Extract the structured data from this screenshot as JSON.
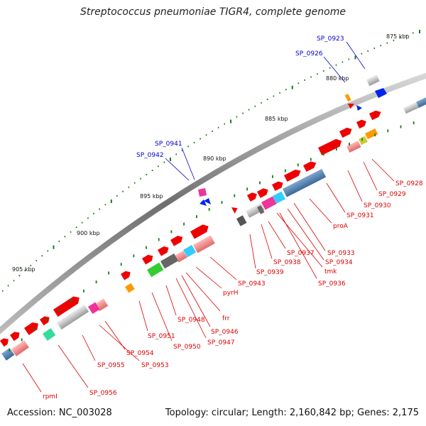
{
  "title": "Streptococcus pneumoniae TIGR4, complete genome",
  "footer": {
    "accession": "Accession: NC_003028",
    "topology": "Topology: circular; Length: 2,160,842 bp; Genes: 2,175"
  },
  "scale_labels": [
    "875 kbp",
    "880 kbp",
    "885 kbp",
    "890 kbp",
    "895 kbp",
    "900 kbp",
    "905 kbp"
  ],
  "blue_labels": [
    "SP_0923",
    "SP_0926",
    "SP_0941",
    "SP_0942"
  ],
  "red_labels": [
    "SP_0928",
    "SP_0929",
    "SP_0930",
    "SP_0931",
    "proA",
    "SP_0933",
    "SP_0934",
    "SP_0936",
    "tmk",
    "SP_0937",
    "SP_0938",
    "SP_0939",
    "SP_0943",
    "pyrH",
    "frr",
    "SP_0946",
    "SP_0947",
    "SP_0948",
    "SP_0950",
    "SP_0951",
    "SP_0954",
    "SP_0953",
    "SP_0955",
    "SP_0956",
    "rpmI"
  ],
  "colors": {
    "backbone": "#7a7a7a",
    "forward_gene": "#ee0000",
    "label_red": "#dd0000",
    "label_blue": "#0000cc",
    "tick_green": "#1a7a1a"
  }
}
